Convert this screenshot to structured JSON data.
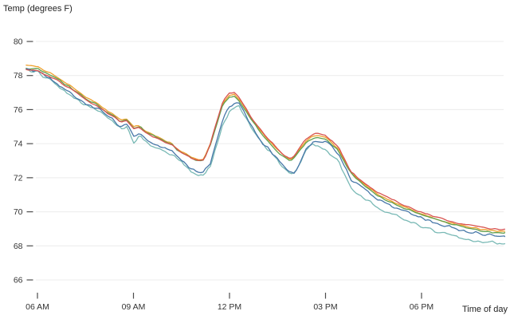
{
  "chart_data": {
    "type": "line",
    "title": "",
    "ylabel": "Temp (degrees F)",
    "xlabel": "Time of day",
    "ylim": [
      66,
      80
    ],
    "y_ticks": [
      66,
      68,
      70,
      72,
      74,
      76,
      78,
      80
    ],
    "x_ticks": [
      {
        "hour": 6,
        "label": "06 AM"
      },
      {
        "hour": 9,
        "label": "09 AM"
      },
      {
        "hour": 12,
        "label": "12 PM"
      },
      {
        "hour": 15,
        "label": "03 PM"
      },
      {
        "hour": 18,
        "label": "06 PM"
      }
    ],
    "xlim_hours": [
      5.65,
      20.6
    ],
    "grid": "horizontal",
    "legend": "none",
    "background": "#ffffff",
    "gridline_color": "#ececec",
    "tick_color": "#4d4d4d",
    "label_color": "#333333",
    "x_hours": [
      5.65,
      5.8,
      6.0,
      6.2,
      6.4,
      6.6,
      6.8,
      7.0,
      7.2,
      7.4,
      7.6,
      7.8,
      8.0,
      8.2,
      8.4,
      8.6,
      8.8,
      9.0,
      9.2,
      9.4,
      9.6,
      9.8,
      10.0,
      10.2,
      10.4,
      10.6,
      10.8,
      11.0,
      11.2,
      11.4,
      11.6,
      11.8,
      12.0,
      12.15,
      12.3,
      12.5,
      12.7,
      12.9,
      13.1,
      13.3,
      13.5,
      13.7,
      13.9,
      14.05,
      14.2,
      14.4,
      14.6,
      14.8,
      15.0,
      15.2,
      15.4,
      15.6,
      15.8,
      16.0,
      16.3,
      16.6,
      17.0,
      17.4,
      17.8,
      18.2,
      18.6,
      19.0,
      19.4,
      19.8,
      20.2,
      20.6
    ],
    "series": [
      {
        "name": "series-orange",
        "color": "#efa02d",
        "noise": 0.045,
        "values": [
          78.6,
          78.6,
          78.55,
          78.3,
          78.15,
          77.95,
          77.65,
          77.45,
          77.15,
          76.9,
          76.65,
          76.45,
          76.2,
          75.9,
          75.7,
          75.4,
          75.45,
          75.0,
          75.05,
          74.7,
          74.55,
          74.35,
          74.15,
          74.0,
          73.65,
          73.45,
          73.2,
          73.05,
          73.1,
          74.0,
          75.25,
          76.4,
          76.85,
          76.9,
          76.6,
          76.05,
          75.45,
          74.95,
          74.45,
          74.05,
          73.65,
          73.3,
          73.05,
          73.25,
          73.7,
          74.2,
          74.45,
          74.5,
          74.4,
          74.05,
          73.7,
          73.0,
          72.3,
          71.95,
          71.5,
          71.05,
          70.7,
          70.35,
          70.0,
          69.75,
          69.5,
          69.3,
          69.15,
          69.0,
          68.9,
          68.85
        ]
      },
      {
        "name": "series-green",
        "color": "#63a04c",
        "noise": 0.05,
        "values": [
          78.45,
          78.4,
          78.4,
          78.2,
          78.05,
          77.85,
          77.55,
          77.35,
          77.05,
          76.8,
          76.55,
          76.35,
          76.1,
          75.8,
          75.6,
          75.3,
          75.4,
          74.9,
          75.0,
          74.65,
          74.5,
          74.3,
          74.1,
          73.95,
          73.6,
          73.4,
          73.15,
          73.0,
          73.05,
          73.9,
          75.1,
          76.3,
          76.75,
          76.8,
          76.5,
          75.95,
          75.35,
          74.85,
          74.35,
          73.95,
          73.55,
          73.2,
          73.0,
          73.2,
          73.6,
          74.1,
          74.3,
          74.35,
          74.25,
          73.95,
          73.6,
          72.9,
          72.25,
          71.85,
          71.45,
          71.0,
          70.6,
          70.25,
          69.95,
          69.7,
          69.45,
          69.25,
          69.05,
          68.9,
          68.8,
          68.75
        ]
      },
      {
        "name": "series-teal",
        "color": "#79b9b5",
        "noise": 0.11,
        "values": [
          78.35,
          78.25,
          78.2,
          77.9,
          77.7,
          77.45,
          77.15,
          76.9,
          76.65,
          76.4,
          76.2,
          76.0,
          75.8,
          75.45,
          75.25,
          74.85,
          75.0,
          74.05,
          74.55,
          74.05,
          73.9,
          73.7,
          73.55,
          73.4,
          73.05,
          72.75,
          72.4,
          72.2,
          72.15,
          72.7,
          73.9,
          75.2,
          75.9,
          76.15,
          76.25,
          75.55,
          74.9,
          74.3,
          73.8,
          73.45,
          73.0,
          72.5,
          72.2,
          72.25,
          72.8,
          73.6,
          73.95,
          73.85,
          73.6,
          73.3,
          73.0,
          72.2,
          71.35,
          71.05,
          70.7,
          70.3,
          69.95,
          69.6,
          69.3,
          69.0,
          68.75,
          68.55,
          68.4,
          68.3,
          68.2,
          68.15
        ]
      },
      {
        "name": "series-blue",
        "color": "#4878a8",
        "noise": 0.11,
        "values": [
          78.4,
          78.3,
          78.25,
          78.0,
          77.8,
          77.55,
          77.25,
          77.0,
          76.75,
          76.5,
          76.3,
          76.1,
          75.9,
          75.55,
          75.35,
          75.0,
          75.1,
          74.4,
          74.7,
          74.2,
          74.05,
          73.85,
          73.7,
          73.55,
          73.2,
          72.9,
          72.55,
          72.35,
          72.3,
          72.9,
          74.2,
          75.5,
          76.1,
          76.35,
          76.4,
          75.7,
          75.0,
          74.4,
          73.9,
          73.55,
          73.1,
          72.6,
          72.3,
          72.35,
          72.9,
          73.7,
          74.1,
          74.1,
          74.15,
          73.75,
          73.4,
          72.6,
          71.9,
          71.6,
          71.2,
          70.75,
          70.4,
          70.05,
          69.8,
          69.5,
          69.25,
          69.05,
          68.85,
          68.7,
          68.6,
          68.55
        ]
      },
      {
        "name": "series-red",
        "color": "#d8534f",
        "noise": 0.05,
        "values": [
          78.35,
          78.3,
          78.3,
          78.05,
          77.9,
          77.75,
          77.45,
          77.25,
          77.0,
          76.7,
          76.5,
          76.25,
          76.05,
          75.75,
          75.55,
          75.25,
          75.35,
          74.85,
          74.95,
          74.6,
          74.45,
          74.25,
          74.1,
          73.95,
          73.6,
          73.4,
          73.15,
          73.0,
          73.05,
          74.0,
          75.3,
          76.5,
          76.95,
          77.0,
          76.7,
          76.1,
          75.5,
          75.0,
          74.5,
          74.1,
          73.7,
          73.35,
          73.1,
          73.3,
          73.8,
          74.3,
          74.55,
          74.6,
          74.5,
          74.15,
          73.8,
          73.1,
          72.35,
          72.0,
          71.6,
          71.15,
          70.8,
          70.45,
          70.1,
          69.85,
          69.6,
          69.4,
          69.25,
          69.1,
          69.0,
          68.95
        ]
      }
    ]
  }
}
